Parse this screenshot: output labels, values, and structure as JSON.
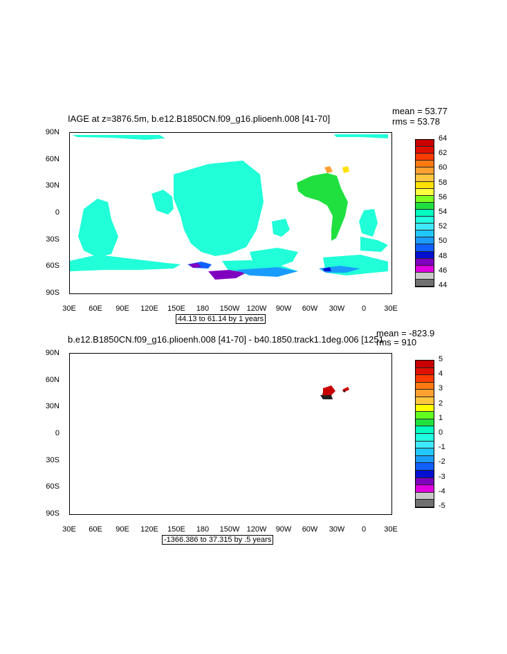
{
  "panel1": {
    "title": "IAGE at z=3876.5m, b.e12.B1850CN.f09_g16.plioenh.008 [41-70]",
    "mean": "mean = 53.77",
    "rms": "rms = 53.78",
    "range": "44.13 to 61.14 by 1 years",
    "y_ticks": [
      "90N",
      "60N",
      "30N",
      "0",
      "30S",
      "60S",
      "90S"
    ],
    "x_ticks": [
      "30E",
      "60E",
      "90E",
      "120E",
      "150E",
      "180",
      "150W",
      "120W",
      "90W",
      "60W",
      "30W",
      "0",
      "30E"
    ],
    "colorbar_labels": [
      "64",
      "62",
      "60",
      "58",
      "56",
      "54",
      "52",
      "50",
      "48",
      "46",
      "44"
    ],
    "colorbar_colors": [
      "#c80000",
      "#e01000",
      "#ff3c00",
      "#ff7a10",
      "#ffa030",
      "#ffc640",
      "#ffe000",
      "#ffff40",
      "#7cff20",
      "#20e040",
      "#00ffc0",
      "#20ffe0",
      "#40e8ff",
      "#20c8ff",
      "#1a9cff",
      "#1060ff",
      "#0010d0",
      "#8000c0",
      "#e000e0",
      "#c8c8c8",
      "#707070"
    ]
  },
  "panel2": {
    "title": "b.e12.B1850CN.f09_g16.plioenh.008 [41-70] - b40.1850.track1.1deg.006 [1251",
    "mean": "mean = -823.9",
    "rms": "rms = 910",
    "range": "-1366.386 to 37.315 by .5 years",
    "y_ticks": [
      "90N",
      "60N",
      "30N",
      "0",
      "30S",
      "60S",
      "90S"
    ],
    "x_ticks": [
      "30E",
      "60E",
      "90E",
      "120E",
      "150E",
      "180",
      "150W",
      "120W",
      "90W",
      "60W",
      "30W",
      "0",
      "30E"
    ],
    "colorbar_labels": [
      "5",
      "4",
      "3",
      "2",
      "1",
      "0",
      "-1",
      "-2",
      "-3",
      "-4",
      "-5"
    ],
    "colorbar_colors": [
      "#c80000",
      "#e01000",
      "#ff3c00",
      "#ff7a10",
      "#ffa030",
      "#ffc640",
      "#ffff00",
      "#60ff20",
      "#20e040",
      "#00ffc0",
      "#20ffe0",
      "#40e8ff",
      "#20c8ff",
      "#1a9cff",
      "#1060ff",
      "#0010d0",
      "#8000c0",
      "#e000e0",
      "#c8c8c8",
      "#707070"
    ]
  }
}
